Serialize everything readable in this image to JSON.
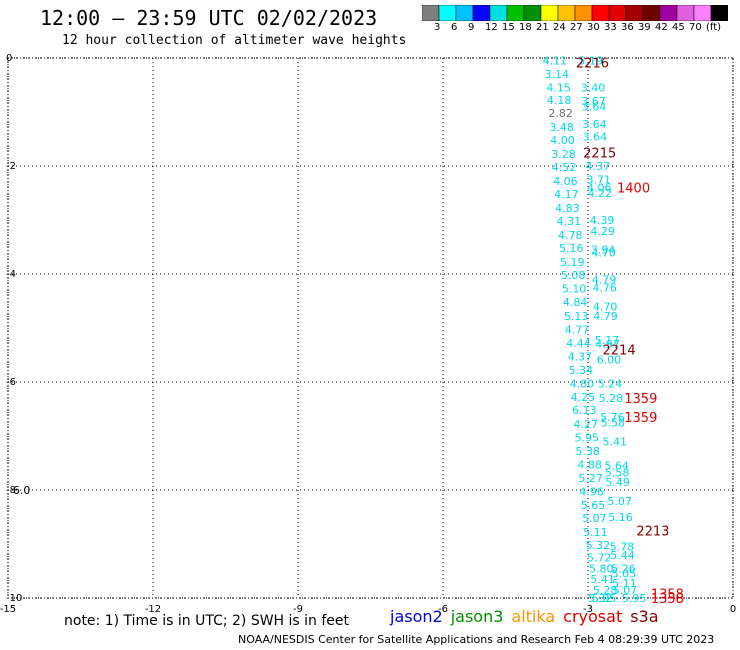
{
  "header": {
    "title": "12:00 – 23:59 UTC 02/02/2023",
    "subtitle": "12 hour collection of altimeter wave heights"
  },
  "colorbar": {
    "colors": [
      "#7f7f7f",
      "#00ffff",
      "#00c0ff",
      "#0000ff",
      "#00e0e0",
      "#00c000",
      "#009000",
      "#ffff00",
      "#ffc000",
      "#ff9000",
      "#ff0000",
      "#e00000",
      "#a00000",
      "#700000",
      "#a000a0",
      "#e060e0",
      "#ff80ff",
      "#000000"
    ],
    "labels": [
      "3",
      "6",
      "9",
      "12",
      "15",
      "18",
      "21",
      "24",
      "27",
      "30",
      "33",
      "36",
      "39",
      "42",
      "45",
      "70",
      "(ft)"
    ]
  },
  "footer": {
    "note": "note: 1) Time is in UTC; 2) SWH is in feet",
    "credit": "NOAA/NESDIS Center for Satellite Applications and Research    Feb  4 08:29:39 UTC 2023",
    "satellites": [
      {
        "name": "jason2",
        "color": "#0000e0"
      },
      {
        "name": "jason3",
        "color": "#009000"
      },
      {
        "name": "altika",
        "color": "#ff9000"
      },
      {
        "name": "cryosat",
        "color": "#e00000"
      },
      {
        "name": "s3a",
        "color": "#800000"
      }
    ]
  },
  "chart_data": {
    "type": "scatter",
    "xlim": [
      -15,
      0
    ],
    "ylim": [
      -10,
      0
    ],
    "x_ticks": [
      "-15",
      "-12",
      "-9",
      "-6",
      "-3",
      "0"
    ],
    "y_ticks": [
      "0",
      "-2",
      "-4",
      "-6",
      "-8",
      "-10"
    ],
    "grid": true,
    "wave_heights": [
      {
        "x": -3.94,
        "y": -0.05,
        "label": "4.11",
        "color": "#00d8e8"
      },
      {
        "x": -3.9,
        "y": -0.3,
        "label": "3.14",
        "color": "#00d8e8"
      },
      {
        "x": -3.86,
        "y": -0.55,
        "label": "4.15",
        "color": "#00d8e8"
      },
      {
        "x": -3.85,
        "y": -0.78,
        "label": "4.18",
        "color": "#00d8e8"
      },
      {
        "x": -3.82,
        "y": -1.02,
        "label": "2.82",
        "color": "#707070"
      },
      {
        "x": -3.8,
        "y": -1.28,
        "label": "3.48",
        "color": "#00d8e8"
      },
      {
        "x": -3.78,
        "y": -1.52,
        "label": "4.00",
        "color": "#00d8e8"
      },
      {
        "x": -3.76,
        "y": -1.78,
        "label": "3.28",
        "color": "#00d8e8"
      },
      {
        "x": -3.75,
        "y": -2.02,
        "label": "4.52",
        "color": "#00d8e8"
      },
      {
        "x": -3.72,
        "y": -2.28,
        "label": "4.06",
        "color": "#00d8e8"
      },
      {
        "x": -3.7,
        "y": -2.52,
        "label": "4.17",
        "color": "#00d8e8"
      },
      {
        "x": -3.68,
        "y": -2.78,
        "label": "4.83",
        "color": "#00d8e8"
      },
      {
        "x": -3.65,
        "y": -3.02,
        "label": "4.31",
        "color": "#00d8e8"
      },
      {
        "x": -3.62,
        "y": -3.28,
        "label": "4.78",
        "color": "#00d8e8"
      },
      {
        "x": -3.6,
        "y": -3.52,
        "label": "5.16",
        "color": "#00d8e8"
      },
      {
        "x": -3.58,
        "y": -3.78,
        "label": "5.19",
        "color": "#00d8e8"
      },
      {
        "x": -3.56,
        "y": -4.02,
        "label": "5.08",
        "color": "#00d8e8"
      },
      {
        "x": -3.54,
        "y": -4.27,
        "label": "5.10",
        "color": "#00d8e8"
      },
      {
        "x": -3.52,
        "y": -4.52,
        "label": "4.84",
        "color": "#00d8e8"
      },
      {
        "x": -3.5,
        "y": -4.78,
        "label": "5.13",
        "color": "#00d8e8"
      },
      {
        "x": -3.48,
        "y": -5.03,
        "label": "4.77",
        "color": "#00d8e8"
      },
      {
        "x": -3.45,
        "y": -5.28,
        "label": "4.44",
        "color": "#00d8e8"
      },
      {
        "x": -3.42,
        "y": -5.53,
        "label": "4.37",
        "color": "#00d8e8"
      },
      {
        "x": -3.4,
        "y": -5.78,
        "label": "5.34",
        "color": "#00d8e8"
      },
      {
        "x": -3.38,
        "y": -6.03,
        "label": "4.80",
        "color": "#00d8e8"
      },
      {
        "x": -3.36,
        "y": -6.28,
        "label": "4.25",
        "color": "#00d8e8"
      },
      {
        "x": -3.33,
        "y": -6.52,
        "label": "6.13",
        "color": "#00d8e8"
      },
      {
        "x": -3.3,
        "y": -6.78,
        "label": "4.27",
        "color": "#00d8e8"
      },
      {
        "x": -3.28,
        "y": -7.03,
        "label": "5.95",
        "color": "#00d8e8"
      },
      {
        "x": -3.26,
        "y": -7.28,
        "label": "5.38",
        "color": "#00d8e8"
      },
      {
        "x": -3.22,
        "y": -7.53,
        "label": "4.88",
        "color": "#00d8e8"
      },
      {
        "x": -3.2,
        "y": -7.78,
        "label": "5.27",
        "color": "#00d8e8"
      },
      {
        "x": -3.18,
        "y": -8.03,
        "label": "4.96",
        "color": "#00d8e8"
      },
      {
        "x": -3.15,
        "y": -8.28,
        "label": "5.65",
        "color": "#00d8e8"
      },
      {
        "x": -3.12,
        "y": -8.52,
        "label": "5.07",
        "color": "#00d8e8"
      },
      {
        "x": -3.1,
        "y": -8.78,
        "label": "5.11",
        "color": "#00d8e8"
      },
      {
        "x": -3.05,
        "y": -9.02,
        "label": "5.32",
        "color": "#00d8e8"
      },
      {
        "x": -3.02,
        "y": -9.25,
        "label": "5.72",
        "color": "#00d8e8"
      },
      {
        "x": -2.98,
        "y": -9.45,
        "label": "5.80",
        "color": "#00d8e8"
      },
      {
        "x": -2.95,
        "y": -9.65,
        "label": "5.41",
        "color": "#00d8e8"
      },
      {
        "x": -2.9,
        "y": -9.85,
        "label": "5.28",
        "color": "#00d8e8"
      },
      {
        "x": -2.92,
        "y": -10.0,
        "label": "5.95",
        "color": "#00d8e8"
      },
      {
        "x": -3.2,
        "y": -0.05,
        "label": "5.19",
        "color": "#00d8e8"
      },
      {
        "x": -3.15,
        "y": -0.55,
        "label": "3.40",
        "color": "#00d8e8"
      },
      {
        "x": -3.14,
        "y": -0.8,
        "label": "3.67",
        "color": "#00d8e8"
      },
      {
        "x": -3.13,
        "y": -0.9,
        "label": "3.64",
        "color": "#00d8e8"
      },
      {
        "x": -3.12,
        "y": -1.22,
        "label": "3.64",
        "color": "#00d8e8"
      },
      {
        "x": -3.11,
        "y": -1.45,
        "label": "3.64",
        "color": "#00d8e8"
      },
      {
        "x": -3.05,
        "y": -2.0,
        "label": "4.37",
        "color": "#00d8e8"
      },
      {
        "x": -3.03,
        "y": -2.25,
        "label": "3.71",
        "color": "#00d8e8"
      },
      {
        "x": -3.02,
        "y": -2.4,
        "label": "4.06",
        "color": "#00d8e8"
      },
      {
        "x": -3.01,
        "y": -2.5,
        "label": "4.22",
        "color": "#00d8e8"
      },
      {
        "x": -2.96,
        "y": -3.0,
        "label": "4.39",
        "color": "#00d8e8"
      },
      {
        "x": -2.95,
        "y": -3.2,
        "label": "4.29",
        "color": "#00d8e8"
      },
      {
        "x": -2.94,
        "y": -3.55,
        "label": "3.94",
        "color": "#00d8e8"
      },
      {
        "x": -2.93,
        "y": -3.6,
        "label": "4.70",
        "color": "#00d8e8"
      },
      {
        "x": -2.92,
        "y": -4.1,
        "label": "4.79",
        "color": "#00d8e8"
      },
      {
        "x": -2.91,
        "y": -4.25,
        "label": "4.76",
        "color": "#00d8e8"
      },
      {
        "x": -2.9,
        "y": -4.6,
        "label": "4.70",
        "color": "#00d8e8"
      },
      {
        "x": -2.89,
        "y": -4.78,
        "label": "4.79",
        "color": "#00d8e8"
      },
      {
        "x": -2.86,
        "y": -5.22,
        "label": "5.17",
        "color": "#00d8e8"
      },
      {
        "x": -2.85,
        "y": -5.3,
        "label": "4.97",
        "color": "#00d8e8"
      },
      {
        "x": -2.82,
        "y": -5.58,
        "label": "6.00",
        "color": "#00d8e8"
      },
      {
        "x": -2.8,
        "y": -6.03,
        "label": "5.24",
        "color": "#00d8e8"
      },
      {
        "x": -2.78,
        "y": -6.3,
        "label": "5.28",
        "color": "#00d8e8"
      },
      {
        "x": -2.75,
        "y": -6.65,
        "label": "5.76",
        "color": "#00d8e8"
      },
      {
        "x": -2.74,
        "y": -6.75,
        "label": "5.58",
        "color": "#00d8e8"
      },
      {
        "x": -2.7,
        "y": -7.1,
        "label": "5.41",
        "color": "#00d8e8"
      },
      {
        "x": -2.66,
        "y": -7.55,
        "label": "5.64",
        "color": "#00d8e8"
      },
      {
        "x": -2.65,
        "y": -7.68,
        "label": "5.58",
        "color": "#00d8e8"
      },
      {
        "x": -2.64,
        "y": -7.85,
        "label": "5.49",
        "color": "#00d8e8"
      },
      {
        "x": -2.6,
        "y": -8.2,
        "label": "5.07",
        "color": "#00d8e8"
      },
      {
        "x": -2.58,
        "y": -8.5,
        "label": "5.16",
        "color": "#00d8e8"
      },
      {
        "x": -2.55,
        "y": -9.05,
        "label": "5.78",
        "color": "#00d8e8"
      },
      {
        "x": -2.54,
        "y": -9.2,
        "label": "5.44",
        "color": "#00d8e8"
      },
      {
        "x": -2.52,
        "y": -9.45,
        "label": "5.26",
        "color": "#00d8e8"
      },
      {
        "x": -2.51,
        "y": -9.55,
        "label": "5.05",
        "color": "#00d8e8"
      },
      {
        "x": -2.5,
        "y": -9.72,
        "label": "5.11",
        "color": "#00d8e8"
      },
      {
        "x": -2.49,
        "y": -9.85,
        "label": "5.07",
        "color": "#00d8e8"
      },
      {
        "x": -2.3,
        "y": -10.0,
        "label": "5.95",
        "color": "#00d8e8"
      },
      {
        "x": -3.0,
        "y": -10.0,
        "label": "5.32",
        "color": "#00d8e8"
      },
      {
        "x": -14.9,
        "y": -8.0,
        "label": "6.0",
        "color": "#000000"
      }
    ],
    "times": [
      {
        "x": -3.25,
        "y": -0.08,
        "label": "2216",
        "color": "#800000"
      },
      {
        "x": -3.1,
        "y": -1.75,
        "label": "2215",
        "color": "#800000"
      },
      {
        "x": -2.4,
        "y": -2.4,
        "label": "1400",
        "color": "#e00000"
      },
      {
        "x": -2.7,
        "y": -5.4,
        "label": "2214",
        "color": "#800000"
      },
      {
        "x": -2.25,
        "y": -6.3,
        "label": "1359",
        "color": "#e00000"
      },
      {
        "x": -2.25,
        "y": -6.65,
        "label": "1359",
        "color": "#e00000"
      },
      {
        "x": -2.0,
        "y": -8.75,
        "label": "2213",
        "color": "#800000"
      },
      {
        "x": -1.7,
        "y": -9.92,
        "label": "1358",
        "color": "#e00000"
      },
      {
        "x": -1.7,
        "y": -10.0,
        "label": "1358",
        "color": "#e00000"
      }
    ]
  }
}
